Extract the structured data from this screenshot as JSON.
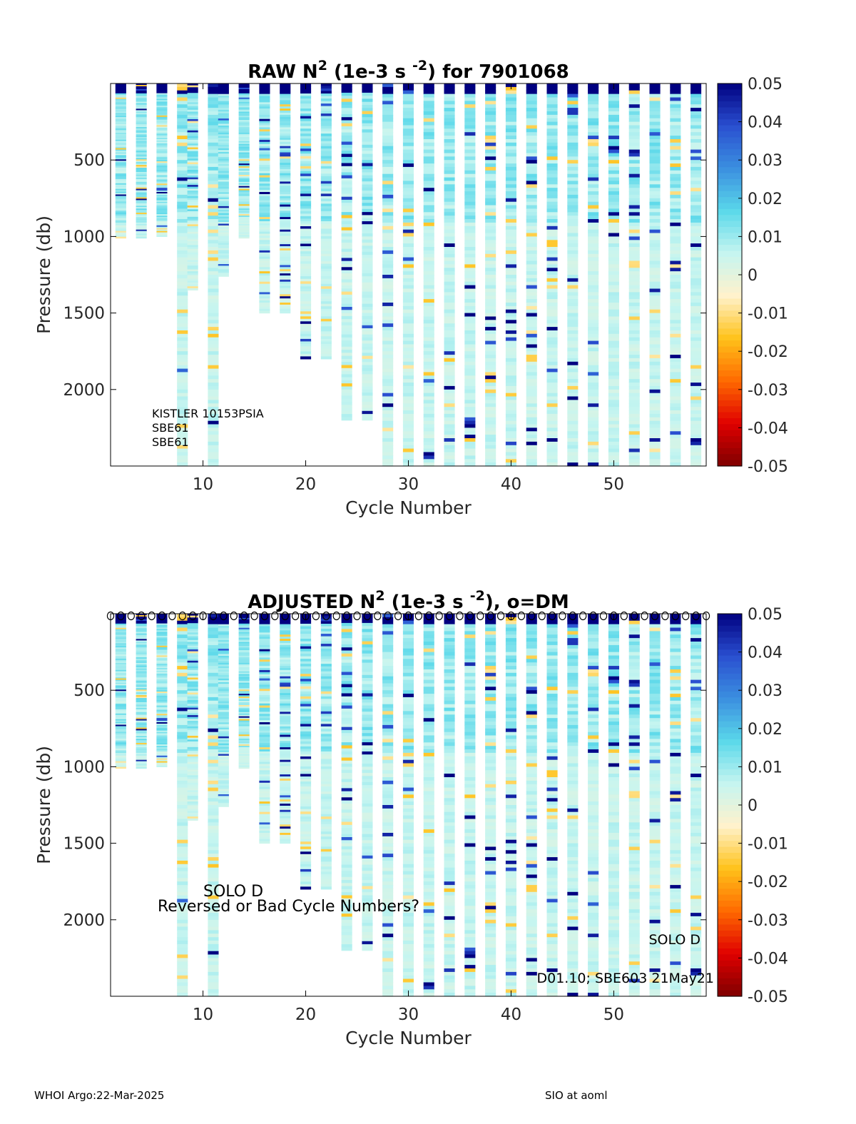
{
  "chart_data": [
    {
      "type": "heatmap",
      "title_main": "RAW N",
      "title_sup": "2",
      "title_unit_pre": "(1e-3 s",
      "title_unit_sup": "-2",
      "title_post": ") for 7901068",
      "xlabel": "Cycle Number",
      "ylabel": "Pressure (db)",
      "xlim": [
        1,
        59
      ],
      "ylim": [
        2500,
        0
      ],
      "xticks": [
        "10",
        "20",
        "30",
        "40",
        "50"
      ],
      "xtick_values": [
        10,
        20,
        30,
        40,
        50
      ],
      "yticks": [
        "500",
        "1000",
        "1500",
        "2000"
      ],
      "ytick_values": [
        500,
        1000,
        1500,
        2000
      ],
      "colorbar": {
        "range": [
          -0.05,
          0.05
        ],
        "ticks": [
          "0.05",
          "0.04",
          "0.03",
          "0.02",
          "0.01",
          "0",
          "-0.01",
          "-0.02",
          "-0.03",
          "-0.04",
          "-0.05"
        ],
        "colormap": [
          "#7f0000",
          "#e00000",
          "#ff6a00",
          "#ffc21a",
          "#fff2cc",
          "#c6f5f0",
          "#5ad8ea",
          "#3b8fe0",
          "#2a4fd0",
          "#000080"
        ]
      },
      "annotations": [
        "KISTLER 10153PSIA",
        "SBE61",
        "SBE61"
      ],
      "dm_markers": false
    },
    {
      "type": "heatmap",
      "title_main": "ADJUSTED N",
      "title_sup": "2",
      "title_unit_pre": "(1e-3 s",
      "title_unit_sup": "-2",
      "title_post": "), o=DM",
      "xlabel": "Cycle Number",
      "ylabel": "Pressure (db)",
      "xlim": [
        1,
        59
      ],
      "ylim": [
        2500,
        0
      ],
      "xticks": [
        "10",
        "20",
        "30",
        "40",
        "50"
      ],
      "xtick_values": [
        10,
        20,
        30,
        40,
        50
      ],
      "yticks": [
        "500",
        "1000",
        "1500",
        "2000"
      ],
      "ytick_values": [
        500,
        1000,
        1500,
        2000
      ],
      "colorbar": {
        "range": [
          -0.05,
          0.05
        ],
        "ticks": [
          "0.05",
          "0.04",
          "0.03",
          "0.02",
          "0.01",
          "0",
          "-0.01",
          "-0.02",
          "-0.03",
          "-0.04",
          "-0.05"
        ],
        "colormap": [
          "#7f0000",
          "#e00000",
          "#ff6a00",
          "#ffc21a",
          "#fff2cc",
          "#c6f5f0",
          "#5ad8ea",
          "#3b8fe0",
          "#2a4fd0",
          "#000080"
        ]
      },
      "annotations": [
        "SOLO D",
        "Reversed or Bad Cycle Numbers?",
        "SOLO D",
        "D01.10; SBE603 21May21"
      ],
      "dm_markers": true
    }
  ],
  "profiles": [
    {
      "cycle": 2,
      "max_pressure": 1010
    },
    {
      "cycle": 4,
      "max_pressure": 1010
    },
    {
      "cycle": 6,
      "max_pressure": 1000
    },
    {
      "cycle": 8,
      "max_pressure": 2500
    },
    {
      "cycle": 9,
      "max_pressure": 1350
    },
    {
      "cycle": 11,
      "max_pressure": 2500
    },
    {
      "cycle": 12,
      "max_pressure": 1260
    },
    {
      "cycle": 14,
      "max_pressure": 1010
    },
    {
      "cycle": 16,
      "max_pressure": 1500
    },
    {
      "cycle": 18,
      "max_pressure": 1500
    },
    {
      "cycle": 20,
      "max_pressure": 1800
    },
    {
      "cycle": 22,
      "max_pressure": 1800
    },
    {
      "cycle": 24,
      "max_pressure": 2200
    },
    {
      "cycle": 26,
      "max_pressure": 2200
    },
    {
      "cycle": 28,
      "max_pressure": 2500
    },
    {
      "cycle": 30,
      "max_pressure": 2500
    },
    {
      "cycle": 32,
      "max_pressure": 2500
    },
    {
      "cycle": 34,
      "max_pressure": 2500
    },
    {
      "cycle": 36,
      "max_pressure": 2500
    },
    {
      "cycle": 38,
      "max_pressure": 2500
    },
    {
      "cycle": 40,
      "max_pressure": 2500
    },
    {
      "cycle": 42,
      "max_pressure": 2500
    },
    {
      "cycle": 44,
      "max_pressure": 2500
    },
    {
      "cycle": 46,
      "max_pressure": 2500
    },
    {
      "cycle": 48,
      "max_pressure": 2500
    },
    {
      "cycle": 50,
      "max_pressure": 2500
    },
    {
      "cycle": 52,
      "max_pressure": 2500
    },
    {
      "cycle": 54,
      "max_pressure": 2500
    },
    {
      "cycle": 56,
      "max_pressure": 2500
    },
    {
      "cycle": 58,
      "max_pressure": 2500
    }
  ],
  "footer": {
    "left": "WHOI Argo:22-Mar-2025",
    "right": "SIO at aoml"
  }
}
